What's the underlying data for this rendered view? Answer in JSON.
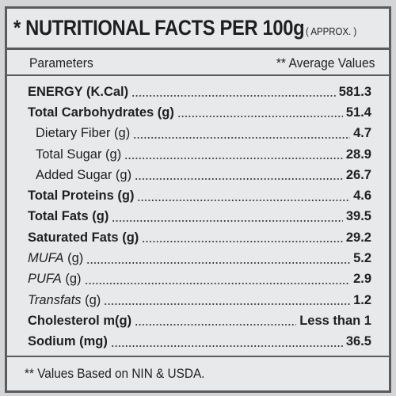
{
  "title": {
    "main": "* NUTRITIONAL FACTS PER 100g",
    "approx": "( APPROX. )"
  },
  "header": {
    "parameters": "Parameters",
    "average_values": "** Average Values"
  },
  "rows": [
    {
      "label": "ENERGY (K.Cal)",
      "value": "581.3"
    },
    {
      "label": "Total Carbohydrates (g)",
      "value": "51.4"
    },
    {
      "label": "Dietary Fiber (g)",
      "value": "4.7"
    },
    {
      "label": "Total Sugar (g)",
      "value": "28.9"
    },
    {
      "label": "Added Sugar (g)",
      "value": "26.7"
    },
    {
      "label": "Total Proteins (g)",
      "value": "4.6"
    },
    {
      "label": "Total Fats (g)",
      "value": "39.5"
    },
    {
      "label": "Saturated Fats (g)",
      "value": "29.2"
    },
    {
      "label_italic": "MUFA",
      "label_rest": " (g)",
      "value": "5.2"
    },
    {
      "label_italic": "PUFA",
      "label_rest": " (g)",
      "value": "2.9"
    },
    {
      "label_italic": "Transfats",
      "label_rest": " (g)",
      "value": "1.2"
    },
    {
      "label": "Cholesterol m(g)",
      "value": "Less than 1"
    },
    {
      "label": "Sodium (mg)",
      "value": "36.5"
    }
  ],
  "footer": "** Values Based on NIN & USDA."
}
